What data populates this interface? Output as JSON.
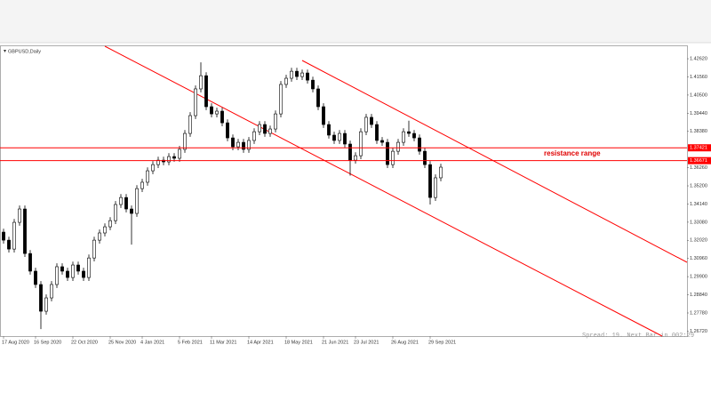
{
  "chart_data": {
    "type": "candlestick",
    "title": "GBPUSD,Daily",
    "categories": [
      "17 Aug 2020",
      null,
      null,
      null,
      null,
      null,
      "16 Sep 2020",
      null,
      null,
      null,
      null,
      null,
      null,
      "22 Oct 2020",
      null,
      null,
      null,
      null,
      null,
      null,
      "25 Nov 2020",
      null,
      null,
      null,
      null,
      null,
      "4 Jan 2021",
      null,
      null,
      null,
      null,
      null,
      null,
      "5 Feb 2021",
      null,
      null,
      null,
      null,
      null,
      "11 Mar 2021",
      null,
      null,
      null,
      null,
      null,
      null,
      "14 Apr 2021",
      null,
      null,
      null,
      null,
      null,
      null,
      "18 May 2021",
      null,
      null,
      null,
      null,
      null,
      null,
      "21 Jun 2021",
      null,
      null,
      null,
      null,
      null,
      "23 Jul 2021",
      null,
      null,
      null,
      null,
      null,
      null,
      "26 Aug 2021",
      null,
      null,
      null,
      null,
      null,
      null,
      "29 Sep 2021",
      null,
      null
    ],
    "open": [
      1.325,
      1.3203,
      1.3151,
      1.3307,
      1.3385,
      1.3125,
      1.3022,
      1.2944,
      1.2788,
      1.2866,
      1.2944,
      1.3048,
      1.3022,
      1.2985,
      1.3058,
      1.3022,
      1.2985,
      1.3099,
      1.3203,
      1.3245,
      1.3281,
      1.3317,
      1.3411,
      1.3452,
      1.3385,
      1.3359,
      1.3504,
      1.3541,
      1.3608,
      1.3644,
      1.367,
      1.366,
      1.3691,
      1.3681,
      1.3733,
      1.3826,
      1.393,
      1.4086,
      1.4163,
      1.3982,
      1.394,
      1.3956,
      1.3888,
      1.38,
      1.3748,
      1.3774,
      1.3733,
      1.3785,
      1.3836,
      1.3878,
      1.3826,
      1.3852,
      1.394,
      1.4112,
      1.4148,
      1.4189,
      1.4158,
      1.4179,
      1.4137,
      1.4086,
      1.3982,
      1.3878,
      1.3816,
      1.3785,
      1.3826,
      1.3764,
      1.367,
      1.3696,
      1.3836,
      1.392,
      1.3878,
      1.3785,
      1.3774,
      1.3644,
      1.3722,
      1.3774,
      1.3836,
      1.3826,
      1.38,
      1.3722,
      1.3644,
      1.3452,
      1.3567
    ],
    "high": [
      1.327,
      1.3223,
      1.3327,
      1.3405,
      1.3405,
      1.3145,
      1.3042,
      1.2964,
      1.2886,
      1.2964,
      1.3068,
      1.3068,
      1.3042,
      1.3078,
      1.3078,
      1.3042,
      1.3119,
      1.3223,
      1.3265,
      1.3301,
      1.3337,
      1.3431,
      1.3472,
      1.3472,
      1.3405,
      1.3524,
      1.3561,
      1.3628,
      1.3664,
      1.369,
      1.369,
      1.3711,
      1.3711,
      1.3753,
      1.3846,
      1.395,
      1.4106,
      1.4241,
      1.4183,
      1.4002,
      1.3976,
      1.3976,
      1.3908,
      1.382,
      1.3794,
      1.3794,
      1.3805,
      1.3856,
      1.3898,
      1.3898,
      1.3872,
      1.396,
      1.4132,
      1.4168,
      1.4209,
      1.4209,
      1.4199,
      1.4199,
      1.4157,
      1.4106,
      1.4002,
      1.3898,
      1.3836,
      1.3846,
      1.3846,
      1.3784,
      1.3716,
      1.3856,
      1.394,
      1.394,
      1.3898,
      1.3805,
      1.3794,
      1.3742,
      1.3794,
      1.3856,
      1.39,
      1.3846,
      1.382,
      1.3742,
      1.3664,
      1.3587,
      1.3649
    ],
    "low": [
      1.3183,
      1.3131,
      1.3131,
      1.3287,
      1.3105,
      1.3002,
      1.2924,
      1.2684,
      1.2768,
      1.2846,
      1.2924,
      1.3002,
      1.2965,
      1.2965,
      1.3002,
      1.2965,
      1.2965,
      1.3079,
      1.3183,
      1.3225,
      1.3261,
      1.3297,
      1.3391,
      1.3365,
      1.3177,
      1.3339,
      1.3484,
      1.3521,
      1.3588,
      1.3624,
      1.364,
      1.364,
      1.3661,
      1.3661,
      1.3713,
      1.3806,
      1.391,
      1.4066,
      1.3962,
      1.392,
      1.392,
      1.3868,
      1.378,
      1.3728,
      1.3728,
      1.3713,
      1.3713,
      1.3765,
      1.3816,
      1.3806,
      1.3806,
      1.3832,
      1.392,
      1.4092,
      1.4128,
      1.4138,
      1.4138,
      1.4117,
      1.4066,
      1.3962,
      1.3858,
      1.3796,
      1.3765,
      1.3765,
      1.3744,
      1.358,
      1.365,
      1.3676,
      1.3816,
      1.3858,
      1.3765,
      1.3754,
      1.3624,
      1.3624,
      1.3702,
      1.3754,
      1.3806,
      1.378,
      1.3702,
      1.3624,
      1.3411,
      1.3432,
      1.3547
    ],
    "close": [
      1.3203,
      1.3151,
      1.3307,
      1.3385,
      1.3125,
      1.3022,
      1.2944,
      1.2788,
      1.2866,
      1.2944,
      1.3048,
      1.3022,
      1.2985,
      1.3058,
      1.3022,
      1.2985,
      1.3099,
      1.3203,
      1.3245,
      1.3281,
      1.3317,
      1.3411,
      1.3452,
      1.3385,
      1.3359,
      1.3504,
      1.3541,
      1.3608,
      1.3644,
      1.367,
      1.366,
      1.3691,
      1.3681,
      1.3733,
      1.3826,
      1.393,
      1.4086,
      1.4163,
      1.3982,
      1.394,
      1.3956,
      1.3888,
      1.38,
      1.3748,
      1.3774,
      1.3733,
      1.3785,
      1.3836,
      1.3878,
      1.3826,
      1.3852,
      1.394,
      1.4112,
      1.4148,
      1.4189,
      1.4158,
      1.4179,
      1.4137,
      1.4086,
      1.3982,
      1.3878,
      1.3816,
      1.3785,
      1.3826,
      1.3764,
      1.367,
      1.3696,
      1.3836,
      1.392,
      1.3878,
      1.3785,
      1.3774,
      1.3644,
      1.3722,
      1.3774,
      1.3836,
      1.3826,
      1.38,
      1.3722,
      1.3644,
      1.3452,
      1.3567,
      1.3629
    ],
    "ylim": [
      1.2643,
      1.4335
    ],
    "yticks": [
      {
        "value": 1.4262,
        "label": "1.42620"
      },
      {
        "value": 1.4156,
        "label": "1.41560"
      },
      {
        "value": 1.405,
        "label": "1.40500"
      },
      {
        "value": 1.3944,
        "label": "1.39440"
      },
      {
        "value": 1.3838,
        "label": "1.38380"
      },
      {
        "value": 1.3626,
        "label": "1.36260"
      },
      {
        "value": 1.352,
        "label": "1.35200"
      },
      {
        "value": 1.3414,
        "label": "1.34140"
      },
      {
        "value": 1.3308,
        "label": "1.33080"
      },
      {
        "value": 1.3202,
        "label": "1.32020"
      },
      {
        "value": 1.3096,
        "label": "1.30960"
      },
      {
        "value": 1.299,
        "label": "1.29900"
      },
      {
        "value": 1.2884,
        "label": "1.28840"
      },
      {
        "value": 1.2778,
        "label": "1.27780"
      },
      {
        "value": 1.2672,
        "label": "1.26720"
      }
    ],
    "levels": [
      1.37421,
      1.36671
    ],
    "level_color": "#ff0000",
    "annotation": "resistance range",
    "status": "Spread: 19. Next Bar in 002:29"
  }
}
